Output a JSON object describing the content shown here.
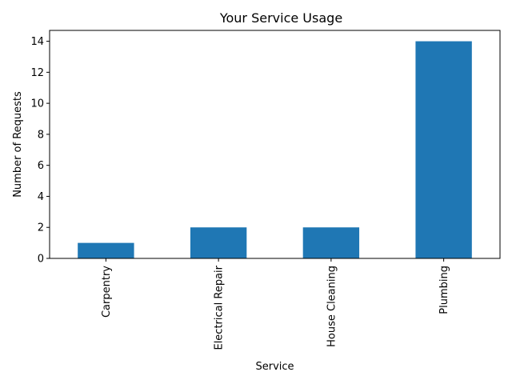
{
  "chart_data": {
    "type": "bar",
    "title": "Your Service Usage",
    "xlabel": "Service",
    "ylabel": "Number of Requests",
    "categories": [
      "Carpentry",
      "Electrical Repair",
      "House Cleaning",
      "Plumbing"
    ],
    "values": [
      1,
      2,
      2,
      14
    ],
    "ylim": [
      0,
      14.7
    ],
    "yticks": [
      0,
      2,
      4,
      6,
      8,
      10,
      12,
      14
    ],
    "bar_color": "#1f77b4",
    "grid": false,
    "legend": false
  }
}
